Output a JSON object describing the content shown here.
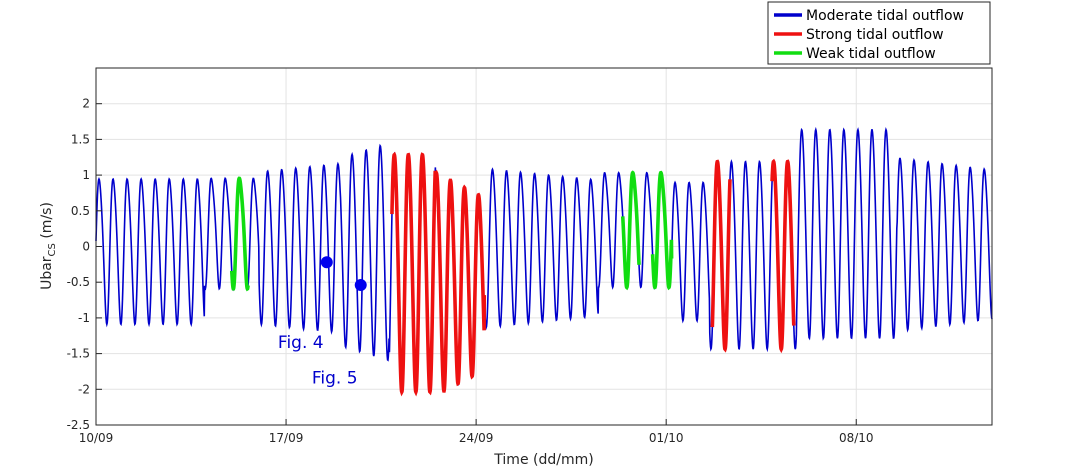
{
  "chart_data": {
    "type": "line",
    "title": "",
    "xlabel": "Time (dd/mm)",
    "ylabel_main": "Ubar",
    "ylabel_sub": "CS",
    "ylabel_unit": " (m/s)",
    "ylim": [
      -2.5,
      2.5
    ],
    "xlim_days": [
      0,
      33
    ],
    "yticks": [
      -2.5,
      -2,
      -1.5,
      -1,
      -0.5,
      0,
      0.5,
      1,
      1.5,
      2
    ],
    "ytick_labels": [
      "-2.5",
      "-2",
      "-1.5",
      "-1",
      "-0.5",
      "0",
      "0.5",
      "1",
      "1.5",
      "2"
    ],
    "xticks": [
      {
        "day": 0,
        "label": "10/09"
      },
      {
        "day": 7,
        "label": "17/09"
      },
      {
        "day": 14,
        "label": "24/09"
      },
      {
        "day": 21,
        "label": "01/10"
      },
      {
        "day": 28,
        "label": "08/10"
      }
    ],
    "grid": true,
    "legend_position": "top-right",
    "series": [
      {
        "name": "Moderate tidal outflow",
        "color": "#0000cc"
      },
      {
        "name": "Strong tidal outflow",
        "color": "#ee1111"
      },
      {
        "name": "Weak tidal outflow",
        "color": "#11dd11"
      }
    ],
    "highlight_segments": [
      {
        "series": 2,
        "start": 5.0,
        "end": 5.6
      },
      {
        "series": 1,
        "start": 10.9,
        "end": 14.3
      },
      {
        "series": 2,
        "start": 19.4,
        "end": 20.0
      },
      {
        "series": 2,
        "start": 20.5,
        "end": 21.2
      },
      {
        "series": 1,
        "start": 22.7,
        "end": 23.35
      },
      {
        "series": 1,
        "start": 24.9,
        "end": 25.7
      }
    ],
    "points": [
      {
        "day": 8.5,
        "y": -0.22,
        "color": "#0000ee"
      },
      {
        "day": 9.75,
        "y": -0.54,
        "color": "#0000ee"
      }
    ],
    "annotations": [
      {
        "text": "Fig. 4",
        "day": 6.7,
        "y": -1.42,
        "color": "#0000cc"
      },
      {
        "text": "Fig. 5",
        "day": 7.95,
        "y": -1.92,
        "color": "#0000cc"
      }
    ]
  }
}
